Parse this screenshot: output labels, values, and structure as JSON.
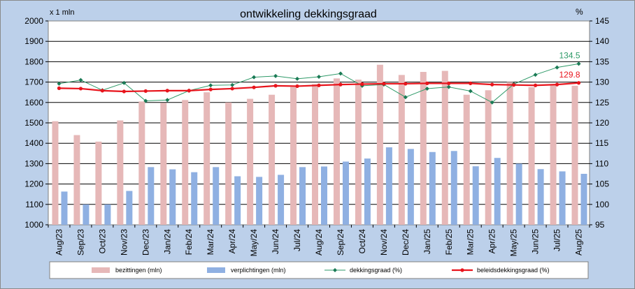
{
  "chart_data": {
    "type": "bar",
    "title": "ontwikkeling  dekkingsgraad",
    "y_left_label": "x 1 mln",
    "y_right_label": "%",
    "y_left_range": [
      1000,
      2000
    ],
    "y_left_ticks": [
      "1000",
      "1100",
      "1200",
      "1300",
      "1400",
      "1500",
      "1600",
      "1700",
      "1800",
      "1900",
      "2000"
    ],
    "y_right_range": [
      95,
      145
    ],
    "y_right_ticks": [
      "95",
      "100",
      "105",
      "110",
      "115",
      "120",
      "125",
      "130",
      "135",
      "140",
      "145"
    ],
    "grid": "horizontal",
    "legend_position": "bottom",
    "categories": [
      "Aug/23",
      "Sep/23",
      "Oct/23",
      "Nov/23",
      "Dec/23",
      "Jan/24",
      "Feb/24",
      "Mar/24",
      "Apr/24",
      "May/24",
      "Jun/24",
      "Jul/24",
      "Aug/24",
      "Sep/24",
      "Oct/24",
      "Nov/24",
      "Dec/24",
      "Jan/25",
      "Feb/25",
      "Mar/25",
      "Apr/25",
      "May/25",
      "Jun/25",
      "Jul/25",
      "Aug/25"
    ],
    "series": [
      {
        "name": "bezittingen (mln)",
        "axis": "left",
        "kind": "bar",
        "color": "#e6b8b8",
        "values": [
          1508,
          1440,
          1408,
          1512,
          1605,
          1598,
          1612,
          1650,
          1600,
          1618,
          1638,
          1676,
          1690,
          1718,
          1712,
          1785,
          1735,
          1750,
          1755,
          1638,
          1660,
          1700,
          1675,
          1688,
          1682
        ]
      },
      {
        "name": "verplichtingen (mln)",
        "axis": "left",
        "kind": "bar",
        "color": "#8fb0e2",
        "values": [
          1163,
          1100,
          1100,
          1166,
          1283,
          1272,
          1258,
          1283,
          1238,
          1235,
          1245,
          1283,
          1286,
          1310,
          1325,
          1380,
          1372,
          1357,
          1362,
          1287,
          1328,
          1300,
          1273,
          1262,
          1250
        ]
      },
      {
        "name": "dekkingsgraad (%)",
        "axis": "right",
        "kind": "line",
        "color": "#2e9a68",
        "values": [
          129.6,
          130.5,
          128.0,
          129.8,
          125.4,
          125.6,
          127.9,
          129.2,
          129.3,
          131.2,
          131.5,
          130.8,
          131.3,
          132.1,
          129.1,
          129.4,
          126.3,
          128.4,
          128.8,
          127.8,
          125.0,
          129.5,
          131.8,
          133.6,
          134.5
        ]
      },
      {
        "name": "beleidsdekkingsgraad (%)",
        "axis": "right",
        "kind": "line",
        "color": "#e8141c",
        "values": [
          128.5,
          128.4,
          127.9,
          127.7,
          127.8,
          127.9,
          127.9,
          128.2,
          128.4,
          128.7,
          129.1,
          129.0,
          129.2,
          129.4,
          129.5,
          129.6,
          129.6,
          129.7,
          129.7,
          129.7,
          129.4,
          129.3,
          129.2,
          129.4,
          129.8
        ]
      }
    ],
    "annotations": [
      {
        "text": "134.5",
        "series": "dekkingsgraad (%)",
        "category": "Aug/25",
        "color": "#2e9a68"
      },
      {
        "text": "129.8",
        "series": "beleidsdekkingsgraad (%)",
        "category": "Aug/25",
        "color": "#e8141c"
      }
    ]
  }
}
